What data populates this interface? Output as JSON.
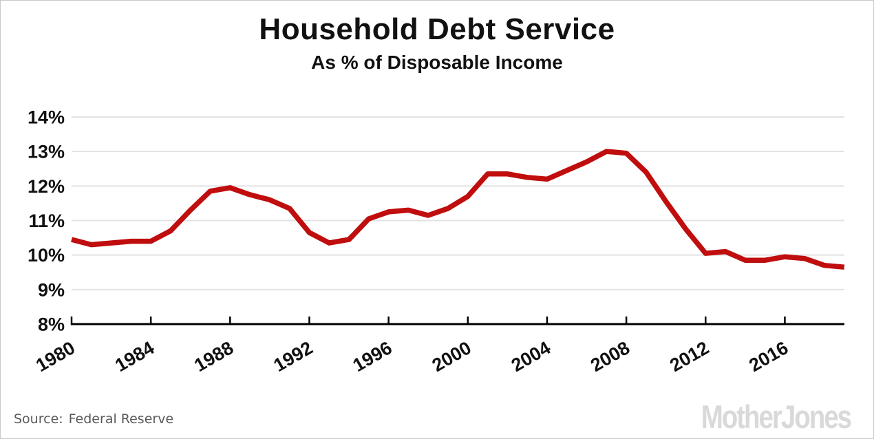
{
  "header": {
    "title": "Household Debt Service",
    "subtitle": "As % of Disposable Income"
  },
  "footer": {
    "source_label": "Source:",
    "source_value": "Federal Reserve",
    "brand": "MotherJones"
  },
  "colors": {
    "line_red": "#c00d0d",
    "gridline_gray": "#e2e2e2",
    "axis_black": "#000000",
    "label_black": "#111111",
    "source_gray": "#595959",
    "brand_gray": "#d9d9d9",
    "frame_gray": "#c9c9c9"
  },
  "chart_data": {
    "type": "line",
    "title": "Household Debt Service",
    "subtitle": "As % of Disposable Income",
    "xlabel": "",
    "ylabel": "",
    "x_range": [
      1980,
      2019
    ],
    "ylim": [
      8,
      14
    ],
    "grid": "horizontal",
    "legend": "none",
    "yticks": {
      "values": [
        14,
        13,
        12,
        11,
        10,
        9,
        8
      ],
      "labels": [
        "14%",
        "13%",
        "12%",
        "11%",
        "10%",
        "9%",
        "8%"
      ]
    },
    "xticks": {
      "values": [
        1980,
        1984,
        1988,
        1992,
        1996,
        2000,
        2004,
        2008,
        2012,
        2016
      ],
      "labels": [
        "1980",
        "1984",
        "1988",
        "1992",
        "1996",
        "2000",
        "2004",
        "2008",
        "2012",
        "2016"
      ]
    },
    "series": [
      {
        "name": "Household debt service as % of disposable income",
        "color": "#c00d0d",
        "x": [
          1980,
          1981,
          1982,
          1983,
          1984,
          1985,
          1986,
          1987,
          1988,
          1989,
          1990,
          1991,
          1992,
          1993,
          1994,
          1995,
          1996,
          1997,
          1998,
          1999,
          2000,
          2001,
          2002,
          2003,
          2004,
          2005,
          2006,
          2007,
          2008,
          2009,
          2010,
          2011,
          2012,
          2013,
          2014,
          2015,
          2016,
          2017,
          2018,
          2019
        ],
        "y": [
          10.45,
          10.3,
          10.35,
          10.4,
          10.4,
          10.7,
          11.3,
          11.85,
          11.95,
          11.75,
          11.6,
          11.35,
          10.65,
          10.35,
          10.45,
          11.05,
          11.25,
          11.3,
          11.15,
          11.35,
          11.7,
          12.35,
          12.35,
          12.25,
          12.2,
          12.45,
          12.7,
          13.0,
          12.95,
          12.4,
          11.55,
          10.75,
          10.05,
          10.1,
          9.85,
          9.85,
          9.95,
          9.9,
          9.7,
          9.65
        ]
      }
    ]
  }
}
